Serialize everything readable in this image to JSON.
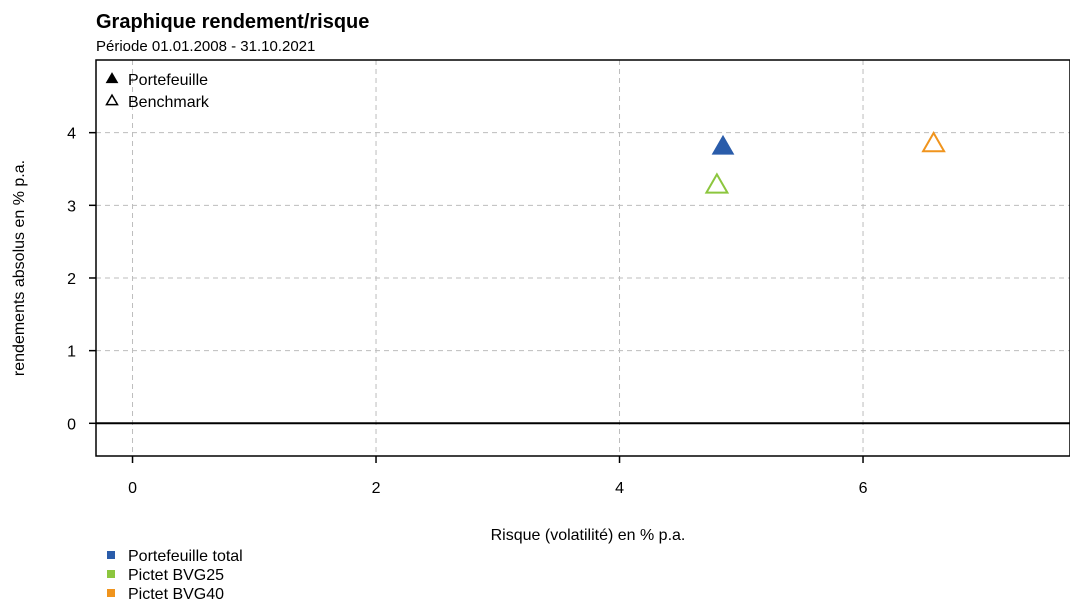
{
  "chart_data": {
    "type": "scatter",
    "title": "Graphique rendement/risque",
    "subtitle": "Période 01.01.2008 - 31.10.2021",
    "xlabel": "Risque (volatilité) en % p.a.",
    "ylabel": "rendements absolus en % p.a.",
    "xlim": [
      -0.3,
      7.7
    ],
    "ylim": [
      -0.45,
      5.0
    ],
    "xticks": [
      0,
      2,
      4,
      6
    ],
    "yticks": [
      0,
      1,
      2,
      3,
      4
    ],
    "grid": true,
    "shape_legend": [
      {
        "label": "Portefeuille",
        "marker": "filled-triangle"
      },
      {
        "label": "Benchmark",
        "marker": "open-triangle"
      }
    ],
    "shape_legend_position": "top-left",
    "color_legend_position": "bottom-left",
    "series": [
      {
        "name": "Portefeuille total",
        "color": "#2a5caa",
        "portefeuille": {
          "x": 4.85,
          "y": 3.8
        },
        "benchmark": null
      },
      {
        "name": "Pictet BVG25",
        "color": "#8cc63e",
        "portefeuille": null,
        "benchmark": {
          "x": 4.8,
          "y": 3.27
        }
      },
      {
        "name": "Pictet BVG40",
        "color": "#f0941d",
        "portefeuille": null,
        "benchmark": {
          "x": 6.58,
          "y": 3.84
        }
      }
    ]
  }
}
